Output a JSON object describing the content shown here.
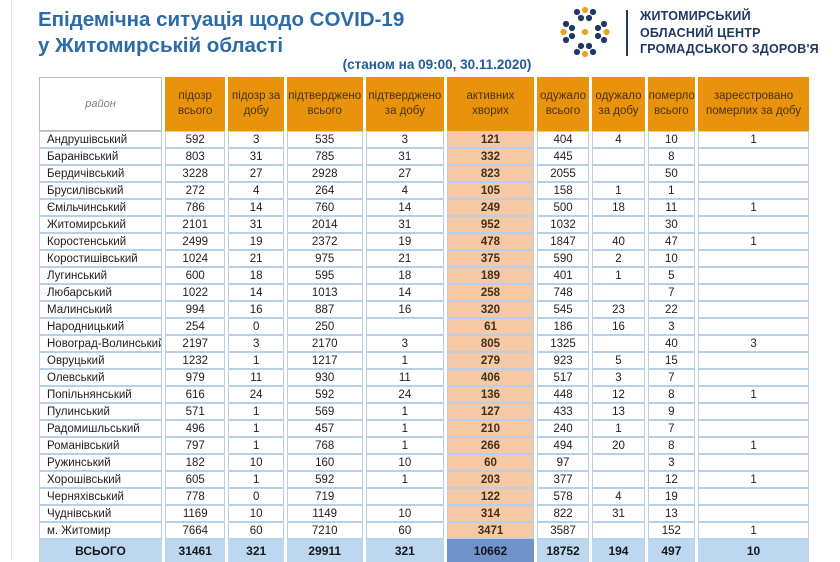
{
  "header": {
    "title_line1": "Епідемічна ситуація щодо COVID-19",
    "title_line2": "у Житомирській області",
    "subtitle": "(станом на 09:00, 30.11.2020)",
    "logo": {
      "org_line1": "ЖИТОМИРСЬКИЙ",
      "org_line2": "ОБЛАСНИЙ ЦЕНТР",
      "org_line3": "ГРОМАДСЬКОГО ЗДОРОВ'Я"
    }
  },
  "colors": {
    "title_blue": "#2b6ca8",
    "subtitle_blue": "#1f5c99",
    "logo_navy": "#203864",
    "logo_yellow": "#eaa321",
    "header_orange": "#e8920e",
    "active_column_bg": "#f6c9a6",
    "total_row_bg": "#bdd7ee",
    "total_active_bg": "#7193cb",
    "grid_border_blue": "#b9cfe8"
  },
  "table": {
    "columns": [
      "район",
      "підозр всього",
      "підозр за добу",
      "підтверджено всього",
      "підтверджено за добу",
      "активних хворих",
      "одужало всього",
      "одужало за добу",
      "померло всього",
      "зареєстровано померлих за добу"
    ],
    "rows": [
      {
        "district": "Андрушівський",
        "values": [
          "592",
          "3",
          "535",
          "3",
          "121",
          "404",
          "4",
          "10",
          "1"
        ]
      },
      {
        "district": "Баранівський",
        "values": [
          "803",
          "31",
          "785",
          "31",
          "332",
          "445",
          "",
          "8",
          ""
        ]
      },
      {
        "district": "Бердичівський",
        "values": [
          "3228",
          "27",
          "2928",
          "27",
          "823",
          "2055",
          "",
          "50",
          ""
        ]
      },
      {
        "district": "Брусилівський",
        "values": [
          "272",
          "4",
          "264",
          "4",
          "105",
          "158",
          "1",
          "1",
          ""
        ]
      },
      {
        "district": "Ємільчинський",
        "values": [
          "786",
          "14",
          "760",
          "14",
          "249",
          "500",
          "18",
          "11",
          "1"
        ]
      },
      {
        "district": "Житомирський",
        "values": [
          "2101",
          "31",
          "2014",
          "31",
          "952",
          "1032",
          "",
          "30",
          ""
        ]
      },
      {
        "district": "Коростенський",
        "values": [
          "2499",
          "19",
          "2372",
          "19",
          "478",
          "1847",
          "40",
          "47",
          "1"
        ]
      },
      {
        "district": "Коростишівський",
        "values": [
          "1024",
          "21",
          "975",
          "21",
          "375",
          "590",
          "2",
          "10",
          ""
        ]
      },
      {
        "district": "Лугинський",
        "values": [
          "600",
          "18",
          "595",
          "18",
          "189",
          "401",
          "1",
          "5",
          ""
        ]
      },
      {
        "district": "Любарський",
        "values": [
          "1022",
          "14",
          "1013",
          "14",
          "258",
          "748",
          "",
          "7",
          ""
        ]
      },
      {
        "district": "Малинський",
        "values": [
          "994",
          "16",
          "887",
          "16",
          "320",
          "545",
          "23",
          "22",
          ""
        ]
      },
      {
        "district": "Народницький",
        "values": [
          "254",
          "0",
          "250",
          "",
          "61",
          "186",
          "16",
          "3",
          ""
        ]
      },
      {
        "district": "Новоград-Волинський",
        "values": [
          "2197",
          "3",
          "2170",
          "3",
          "805",
          "1325",
          "",
          "40",
          "3"
        ]
      },
      {
        "district": "Овруцький",
        "values": [
          "1232",
          "1",
          "1217",
          "1",
          "279",
          "923",
          "5",
          "15",
          ""
        ]
      },
      {
        "district": "Олевський",
        "values": [
          "979",
          "11",
          "930",
          "11",
          "406",
          "517",
          "3",
          "7",
          ""
        ]
      },
      {
        "district": "Попільнянський",
        "values": [
          "616",
          "24",
          "592",
          "24",
          "136",
          "448",
          "12",
          "8",
          "1"
        ]
      },
      {
        "district": "Пулинський",
        "values": [
          "571",
          "1",
          "569",
          "1",
          "127",
          "433",
          "13",
          "9",
          ""
        ]
      },
      {
        "district": "Радомишльський",
        "values": [
          "496",
          "1",
          "457",
          "1",
          "210",
          "240",
          "1",
          "7",
          ""
        ]
      },
      {
        "district": "Романівський",
        "values": [
          "797",
          "1",
          "768",
          "1",
          "266",
          "494",
          "20",
          "8",
          "1"
        ]
      },
      {
        "district": "Ружинський",
        "values": [
          "182",
          "10",
          "160",
          "10",
          "60",
          "97",
          "",
          "3",
          ""
        ]
      },
      {
        "district": "Хорошівський",
        "values": [
          "605",
          "1",
          "592",
          "1",
          "203",
          "377",
          "",
          "12",
          "1"
        ]
      },
      {
        "district": "Черняхівський",
        "values": [
          "778",
          "0",
          "719",
          "",
          "122",
          "578",
          "4",
          "19",
          ""
        ]
      },
      {
        "district": "Чуднівський",
        "values": [
          "1169",
          "10",
          "1149",
          "10",
          "314",
          "822",
          "31",
          "13",
          ""
        ]
      },
      {
        "district": "м. Житомир",
        "values": [
          "7664",
          "60",
          "7210",
          "60",
          "3471",
          "3587",
          "",
          "152",
          "1"
        ]
      }
    ],
    "total": {
      "label": "ВСЬОГО",
      "values": [
        "31461",
        "321",
        "29911",
        "321",
        "10662",
        "18752",
        "194",
        "497",
        "10"
      ]
    }
  }
}
